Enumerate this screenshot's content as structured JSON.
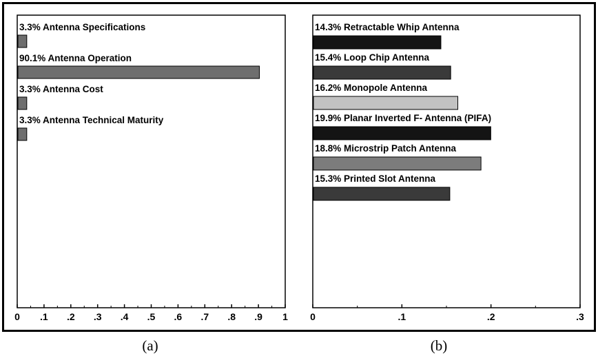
{
  "captions": {
    "a": "(a)",
    "b": "(b)"
  },
  "chart_data": [
    {
      "id": "a",
      "type": "bar",
      "orientation": "horizontal",
      "categories": [
        "3.3% Antenna Specifications",
        "90.1% Antenna Operation",
        "3.3% Antenna Cost",
        "3.3% Antenna Technical Maturity"
      ],
      "values": [
        0.033,
        0.901,
        0.033,
        0.033
      ],
      "colors": [
        "#6e6e6e",
        "#6e6e6e",
        "#6e6e6e",
        "#6e6e6e"
      ],
      "xlim": [
        0,
        1
      ],
      "ticks": [
        0,
        0.1,
        0.2,
        0.3,
        0.4,
        0.5,
        0.6,
        0.7,
        0.8,
        0.9,
        1
      ],
      "tick_labels": [
        "0",
        ".1",
        ".2",
        ".3",
        ".4",
        ".5",
        ".6",
        ".7",
        ".8",
        ".9",
        "1"
      ],
      "grid": false,
      "legend": "none"
    },
    {
      "id": "b",
      "type": "bar",
      "orientation": "horizontal",
      "categories": [
        "14.3% Retractable Whip Antenna",
        "15.4% Loop Chip Antenna",
        "16.2% Monopole Antenna",
        "19.9% Planar Inverted F- Antenna (PIFA)",
        "18.8% Microstrip Patch Antenna",
        "15.3% Printed Slot Antenna"
      ],
      "values": [
        0.143,
        0.154,
        0.162,
        0.199,
        0.188,
        0.153
      ],
      "colors": [
        "#141414",
        "#3a3a3a",
        "#c2c2c2",
        "#141414",
        "#7c7c7c",
        "#3a3a3a"
      ],
      "xlim": [
        0,
        0.3
      ],
      "ticks": [
        0,
        0.1,
        0.2,
        0.3
      ],
      "tick_labels": [
        "0",
        ".1",
        ".2",
        ".3"
      ],
      "grid": false,
      "legend": "none"
    }
  ]
}
